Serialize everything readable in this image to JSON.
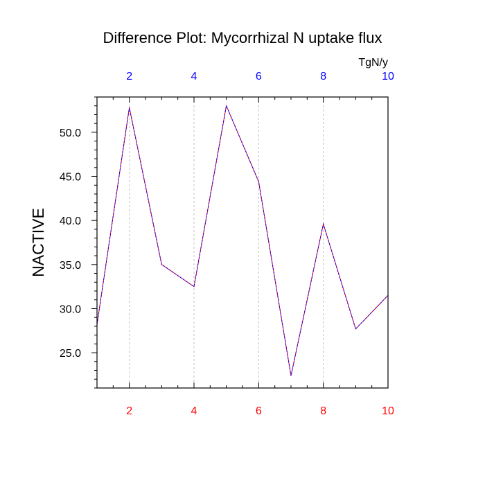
{
  "chart_data": {
    "type": "line",
    "title": "Difference Plot: Mycorrhizal N uptake flux",
    "units": "TgN/y",
    "ylabel": "NACTIVE",
    "xlabel": "",
    "x": [
      1,
      2,
      3,
      4,
      5,
      6,
      7,
      8,
      9,
      10
    ],
    "series": [
      {
        "values": [
          28.2,
          52.8,
          35.0,
          32.5,
          53.0,
          44.4,
          22.4,
          39.6,
          27.7,
          31.5
        ],
        "color": "#ff0000",
        "overlay_color": "#0000ff"
      }
    ],
    "xlim": [
      1,
      10
    ],
    "ylim": [
      21,
      54
    ],
    "x_ticks": [
      "2",
      "4",
      "6",
      "8",
      "10"
    ],
    "x_tick_values": [
      2,
      4,
      6,
      8,
      10
    ],
    "y_ticks": [
      "25.0",
      "30.0",
      "35.0",
      "40.0",
      "45.0",
      "50.0"
    ],
    "y_tick_values": [
      25,
      30,
      35,
      40,
      45,
      50
    ],
    "bottom_tick_color": "#ff0000",
    "top_tick_color": "#0000ff",
    "grid": "vertical dashed at major x ticks",
    "legend": "none"
  }
}
